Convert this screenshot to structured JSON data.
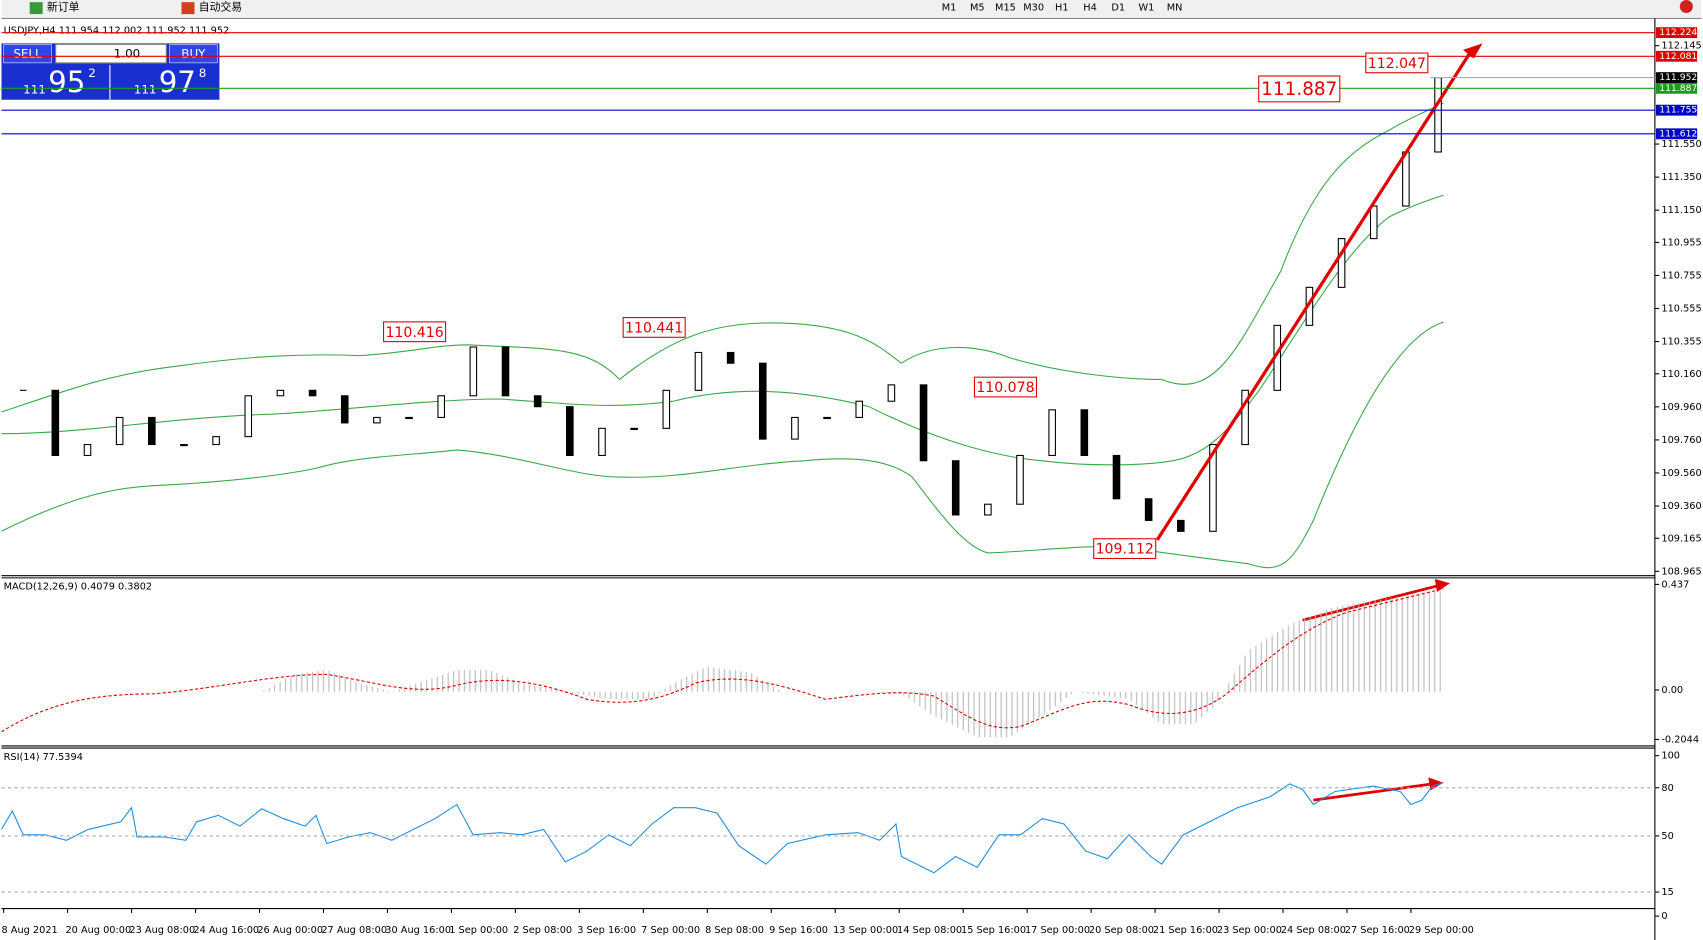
{
  "toolbar": {
    "new_order": "新订单",
    "auto_trading": "自动交易",
    "timeframes": [
      "M1",
      "M5",
      "M15",
      "M30",
      "H1",
      "H4",
      "D1",
      "W1",
      "MN"
    ]
  },
  "trade_panel": {
    "sell": "SELL",
    "lot": "1.00",
    "buy": "BUY",
    "sell_big": "111",
    "sell_main": "95",
    "sell_sup": "2",
    "buy_big": "111",
    "buy_main": "97",
    "buy_sup": "8"
  },
  "chart_data": {
    "type": "candlestick",
    "title": "USDJPY,H4  111.954 112.002 111.952 111.952",
    "closes": [
      110.06,
      109.666,
      109.732,
      109.896,
      109.732,
      109.732,
      109.78,
      110.027,
      110.06,
      110.027,
      109.863,
      109.896,
      109.896,
      110.027,
      110.322,
      110.027,
      109.961,
      109.666,
      109.83,
      109.83,
      110.06,
      110.289,
      110.224,
      109.765,
      109.896,
      109.896,
      109.994,
      110.093,
      109.634,
      109.306,
      109.371,
      109.666,
      109.942,
      109.666,
      109.404,
      109.273,
      109.207,
      109.732,
      110.06,
      110.453,
      110.683,
      110.978,
      111.175,
      111.502,
      111.952
    ],
    "ylim": [
      108.945,
      112.31
    ],
    "yticks": [
      112.145,
      {
        "value": 111.55,
        "label": "111.550"
      },
      {
        "value": 111.35,
        "label": "111.350"
      },
      {
        "value": 111.15,
        "label": "111.150"
      },
      110.955,
      110.755,
      110.555,
      110.355,
      {
        "value": 110.16,
        "label": "110.160"
      },
      {
        "value": 109.96,
        "label": "109.960"
      },
      {
        "value": 109.76,
        "label": "109.760"
      },
      {
        "value": 109.56,
        "label": "109.560"
      },
      {
        "value": 109.36,
        "label": "109.360"
      },
      109.165,
      108.965
    ],
    "levels": [
      {
        "value": 112.224,
        "color": "#e00000"
      },
      {
        "value": 112.081,
        "color": "#e00000"
      },
      {
        "value": 111.952,
        "color": "#000000"
      },
      {
        "value": 111.887,
        "color": "#1a9e1a"
      },
      {
        "value": 111.755,
        "color": "#0000cc"
      },
      {
        "value": 111.612,
        "color": "#0000cc"
      }
    ],
    "annotations": [
      110.416,
      110.441,
      110.078,
      109.112,
      111.887,
      112.047
    ],
    "x_labels": [
      "8 Aug 2021",
      "20 Aug 00:00",
      "23 Aug 08:00",
      "24 Aug 16:00",
      "26 Aug 00:00",
      "27 Aug 08:00",
      "30 Aug 16:00",
      "1 Sep 00:00",
      "2 Sep 08:00",
      "3 Sep 16:00",
      "7 Sep 00:00",
      "8 Sep 08:00",
      "9 Sep 16:00",
      "13 Sep 00:00",
      "14 Sep 08:00",
      "15 Sep 16:00",
      "17 Sep 00:00",
      "20 Sep 08:00",
      "21 Sep 16:00",
      "23 Sep 00:00",
      "24 Sep 08:00",
      "27 Sep 16:00",
      "29 Sep 00:00"
    ],
    "macd": {
      "label": "MACD(12,26,9) 0.4079 0.3802",
      "ylim": [
        -0.2044,
        0.437
      ],
      "yticks": [
        0.437,
        {
          "value": 0,
          "label": "0.00"
        },
        -0.2044
      ]
    },
    "rsi": {
      "label": "RSI(14) 77.5394",
      "ylim": [
        0,
        100
      ],
      "yticks": [
        100,
        80,
        50,
        15,
        0
      ]
    }
  }
}
